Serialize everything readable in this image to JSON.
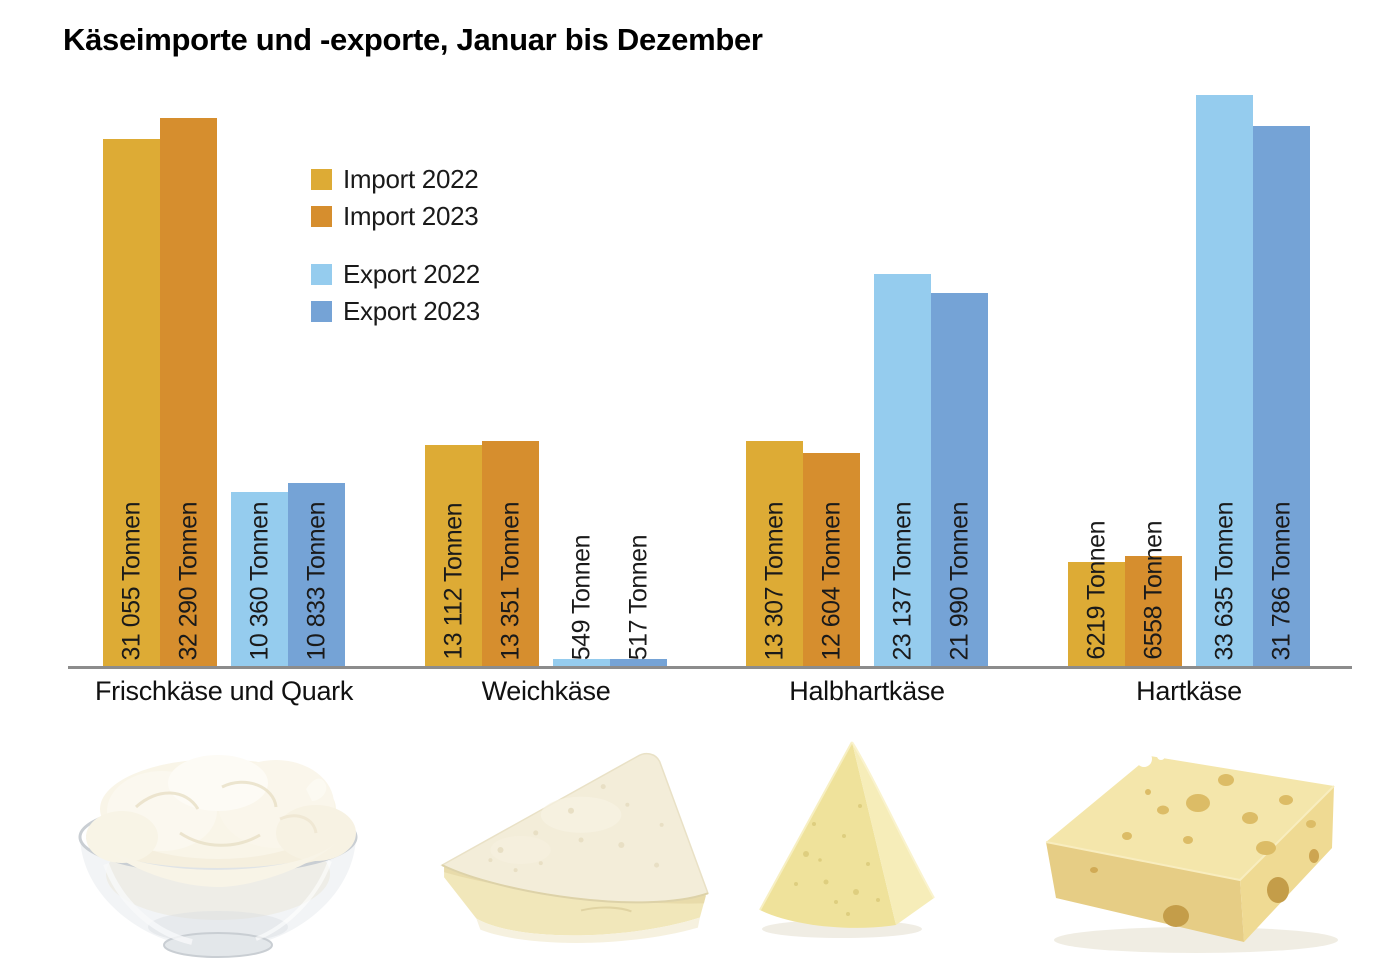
{
  "title": "Käseimporte und -exporte, Januar bis Dezember",
  "chart_data": {
    "type": "bar",
    "title": "Käseimporte und -exporte, Januar bis Dezember",
    "categories": [
      "Frischkäse und Quark",
      "Weichkäse",
      "Halbhartkäse",
      "Hartkäse"
    ],
    "series": [
      {
        "name": "Import 2022",
        "color": "#DDAB35",
        "values": [
          31055,
          13112,
          13307,
          6219
        ],
        "labels": [
          "31 055 Tonnen",
          "13 112 Tonnen",
          "13 307 Tonnen",
          "6219 Tonnen"
        ]
      },
      {
        "name": "Import 2023",
        "color": "#D68E2E",
        "values": [
          32290,
          13351,
          12604,
          6558
        ],
        "labels": [
          "32 290 Tonnen",
          "13 351 Tonnen",
          "12 604 Tonnen",
          "6558 Tonnen"
        ]
      },
      {
        "name": "Export 2022",
        "color": "#95CCEE",
        "values": [
          10360,
          549,
          23137,
          33635
        ],
        "labels": [
          "10 360 Tonnen",
          "549 Tonnen",
          "23 137 Tonnen",
          "33 635 Tonnen"
        ]
      },
      {
        "name": "Export 2023",
        "color": "#75A3D6",
        "values": [
          10833,
          517,
          21990,
          31786
        ],
        "labels": [
          "10 833 Tonnen",
          "517 Tonnen",
          "21 990 Tonnen",
          "31 786 Tonnen"
        ]
      }
    ],
    "unit": "Tonnen",
    "ylim": [
      0,
      34000
    ],
    "grid": false,
    "y_axis_hidden": true,
    "legend_position": "inside-upper-left",
    "legend_groups": [
      [
        "Import 2022",
        "Import 2023"
      ],
      [
        "Export 2022",
        "Export 2023"
      ]
    ],
    "axis_baseline_color": "#8C8C8C",
    "value_label_rotation": 90
  },
  "footer_images": [
    {
      "icon": "fresh-cheese-bowl-image",
      "category": "Frischkäse und Quark"
    },
    {
      "icon": "soft-cheese-wedge-image",
      "category": "Weichkäse"
    },
    {
      "icon": "semi-hard-cheese-wedge-image",
      "category": "Halbhartkäse"
    },
    {
      "icon": "hard-cheese-block-image",
      "category": "Hartkäse"
    }
  ]
}
